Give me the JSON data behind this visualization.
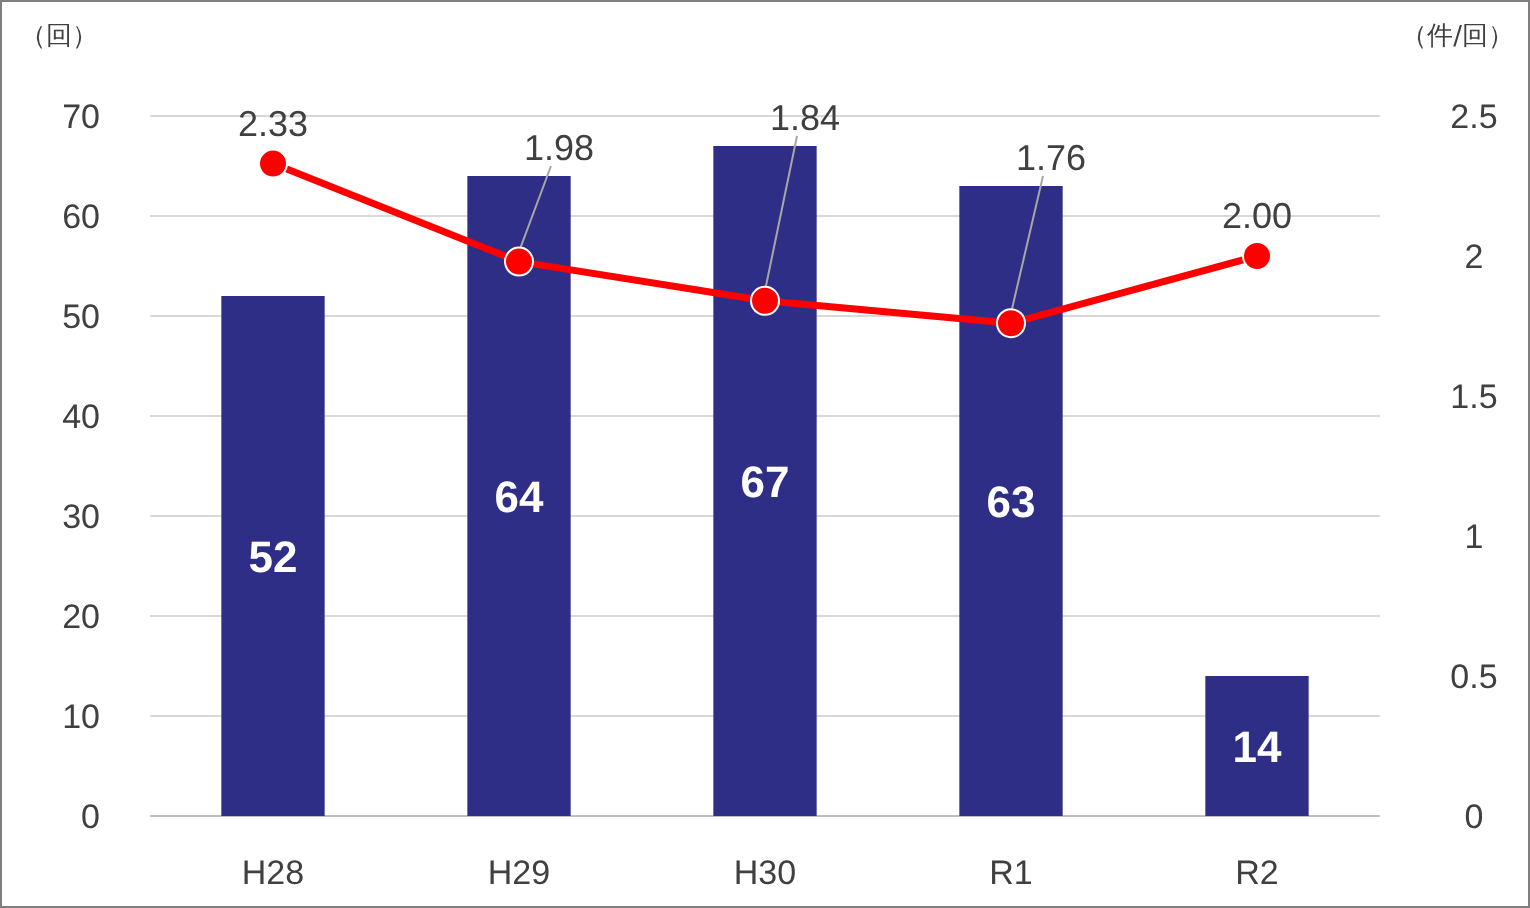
{
  "chart_data": {
    "type": "bar",
    "ylabel": "（回）",
    "y2label": "（件/回）",
    "categories": [
      "H28",
      "H29",
      "H30",
      "R1",
      "R2"
    ],
    "series": [
      {
        "color": "#2e2e87",
        "values": [
          52,
          64,
          67,
          63,
          14
        ],
        "value_labels": [
          "52",
          "64",
          "67",
          "63",
          "14"
        ]
      },
      {
        "type": "line",
        "axis": "y2",
        "color": "#ff0000",
        "values": [
          2.33,
          1.98,
          1.84,
          1.76,
          2.0
        ],
        "value_labels": [
          "2.33",
          "1.98",
          "1.84",
          "1.76",
          "2.00"
        ],
        "marker": "circle"
      }
    ],
    "ylim": [
      0,
      70
    ],
    "yticks": [
      0,
      10,
      20,
      30,
      40,
      50,
      60,
      70
    ],
    "y2lim": [
      0,
      2.5
    ],
    "y2ticks": [
      0,
      0.5,
      1,
      1.5,
      2,
      2.5
    ],
    "grid": "y"
  }
}
